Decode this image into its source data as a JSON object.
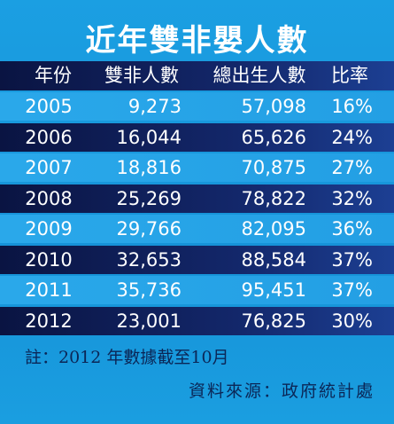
{
  "title": "近年雙非嬰人數",
  "table": {
    "header": [
      "年份",
      "雙非人數",
      "總出生人數",
      "比率"
    ],
    "rows": [
      [
        "2005",
        "9,273",
        "57,098",
        "16%"
      ],
      [
        "2006",
        "16,044",
        "65,626",
        "24%"
      ],
      [
        "2007",
        "18,816",
        "70,875",
        "27%"
      ],
      [
        "2008",
        "25,269",
        "78,822",
        "32%"
      ],
      [
        "2009",
        "29,766",
        "82,095",
        "36%"
      ],
      [
        "2010",
        "32,653",
        "88,584",
        "37%"
      ],
      [
        "2011",
        "35,736",
        "95,451",
        "37%"
      ],
      [
        "2012",
        "23,001",
        "76,825",
        "30%"
      ]
    ]
  },
  "note": "註：2012 年數據截至10月",
  "source": "資料來源：政府統計處"
}
